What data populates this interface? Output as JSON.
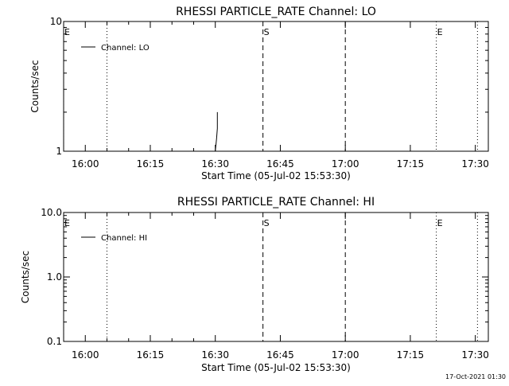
{
  "footer_timestamp": "17-Oct-2021 01:30",
  "chart_data": [
    {
      "type": "line",
      "title": "RHESSI PARTICLE_RATE Channel: LO",
      "xlabel": "Start Time (05-Jul-02 15:53:30)",
      "ylabel": "Counts/sec",
      "xrange_minutes": [
        15.9167,
        16.8
      ],
      "x_ticks": [
        {
          "t": 16.0,
          "label": "16:00"
        },
        {
          "t": 16.25,
          "label": "16:15"
        },
        {
          "t": 16.5,
          "label": "16:30"
        },
        {
          "t": 16.75,
          "label": "16:45"
        },
        {
          "t": 17.0,
          "label": "17:00"
        },
        {
          "t": 17.25,
          "label": "17:15"
        },
        {
          "t": 17.5,
          "label": "17:30"
        }
      ],
      "y_scale": "log",
      "ylim": [
        1,
        10
      ],
      "y_ticks": [
        {
          "v": 1,
          "label": "1"
        },
        {
          "v": 10,
          "label": "10"
        }
      ],
      "legend": {
        "label": "Channel: LO",
        "position": "top-left"
      },
      "markers": [
        {
          "t": 15.9167,
          "style": "dotted",
          "label": "E"
        },
        {
          "t": 16.0833,
          "style": "dotted",
          "label": ""
        },
        {
          "t": 16.6833,
          "style": "dashed",
          "label": "S"
        },
        {
          "t": 17.0,
          "style": "dashed",
          "label": ""
        },
        {
          "t": 17.35,
          "style": "dotted",
          "label": "E"
        },
        {
          "t": 17.5083,
          "style": "dotted",
          "label": ""
        }
      ],
      "series": [
        {
          "name": "Channel: LO",
          "x": [
            16.5,
            16.505,
            16.508,
            16.508
          ],
          "y": [
            1.0,
            1.25,
            1.5,
            2.0
          ]
        }
      ]
    },
    {
      "type": "line",
      "title": "RHESSI PARTICLE_RATE Channel: HI",
      "xlabel": "Start Time (05-Jul-02 15:53:30)",
      "ylabel": "Counts/sec",
      "x_ticks": [
        {
          "t": 16.0,
          "label": "16:00"
        },
        {
          "t": 16.25,
          "label": "16:15"
        },
        {
          "t": 16.5,
          "label": "16:30"
        },
        {
          "t": 16.75,
          "label": "16:45"
        },
        {
          "t": 17.0,
          "label": "17:00"
        },
        {
          "t": 17.25,
          "label": "17:15"
        },
        {
          "t": 17.5,
          "label": "17:30"
        }
      ],
      "y_scale": "log",
      "ylim": [
        0.1,
        10
      ],
      "y_ticks": [
        {
          "v": 0.1,
          "label": "0.1"
        },
        {
          "v": 1.0,
          "label": "1.0"
        },
        {
          "v": 10.0,
          "label": "10.0"
        }
      ],
      "legend": {
        "label": "Channel: HI",
        "position": "top-left"
      },
      "markers": [
        {
          "t": 15.9167,
          "style": "dotted",
          "label": "E"
        },
        {
          "t": 16.0833,
          "style": "dotted",
          "label": ""
        },
        {
          "t": 16.6833,
          "style": "dashed",
          "label": "S"
        },
        {
          "t": 17.0,
          "style": "dashed",
          "label": ""
        },
        {
          "t": 17.35,
          "style": "dotted",
          "label": "E"
        },
        {
          "t": 17.5083,
          "style": "dotted",
          "label": ""
        }
      ],
      "series": [
        {
          "name": "Channel: HI",
          "x": [],
          "y": []
        }
      ]
    }
  ]
}
